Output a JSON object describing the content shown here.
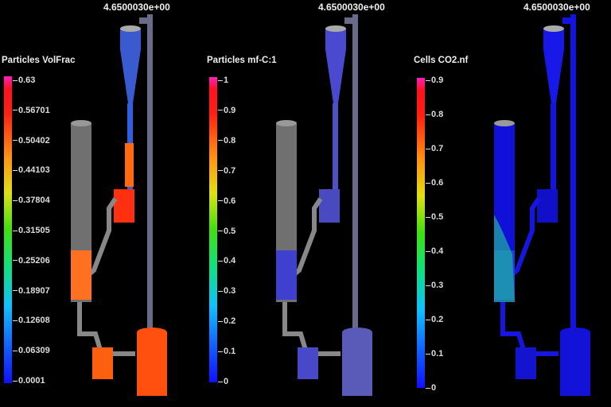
{
  "panels": [
    {
      "time": "4.6500030e+00",
      "title": "Particles VolFrac",
      "ticks": [
        "0.63",
        "0.56701",
        "0.50402",
        "0.44103",
        "0.37804",
        "0.31505",
        "0.25206",
        "0.18907",
        "0.12608",
        "0.06309",
        "0.0001"
      ]
    },
    {
      "time": "4.6500030e+00",
      "title": "Particles mf-C:1",
      "ticks": [
        "1",
        "0.9",
        "0.8",
        "0.7",
        "0.6",
        "0.5",
        "0.4",
        "0.3",
        "0.2",
        "0.1",
        "0"
      ]
    },
    {
      "time": "4.6500030e+00",
      "title": "Cells CO2.nf",
      "ticks": [
        "0.9",
        "0.8",
        "0.7",
        "0.6",
        "0.5",
        "0.4",
        "0.3",
        "0.2",
        "0.1",
        "0"
      ]
    }
  ]
}
